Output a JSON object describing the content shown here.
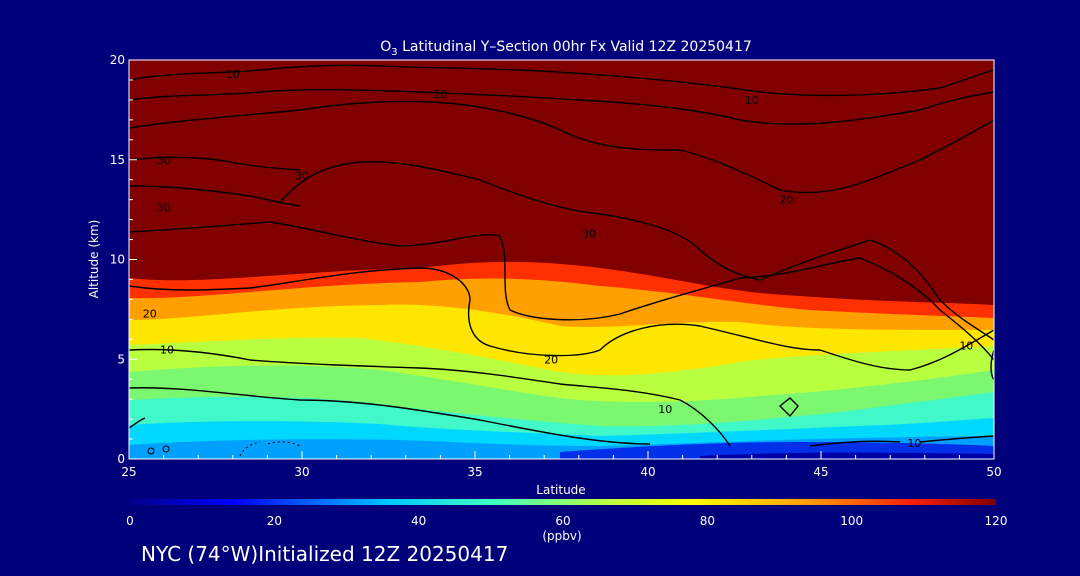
{
  "chart_data": {
    "type": "heatmap",
    "title_main": "O",
    "title_sub": "3",
    "title_rest": " Latitudinal Y–Section 00hr  Fx Valid 12Z 20250417",
    "xlabel": "Latitude",
    "ylabel": "Altitude (km)",
    "xlim": [
      25,
      50
    ],
    "ylim": [
      0,
      20
    ],
    "x_ticks": [
      "25",
      "30",
      "35",
      "40",
      "45",
      "50"
    ],
    "y_ticks": [
      "0",
      "5",
      "10",
      "15",
      "20"
    ],
    "colorbar": {
      "ticks": [
        "0",
        "20",
        "40",
        "60",
        "80",
        "100",
        "120"
      ],
      "range": [
        0,
        120
      ],
      "unit": "(ppbv)"
    },
    "contours": [
      {
        "label": "10",
        "lat": 28,
        "alt": 19.3
      },
      {
        "label": "20",
        "lat": 34,
        "alt": 18.3
      },
      {
        "label": "10",
        "lat": 43,
        "alt": 18.0
      },
      {
        "label": "30",
        "lat": 26,
        "alt": 15.0
      },
      {
        "label": "30",
        "lat": 26,
        "alt": 12.6
      },
      {
        "label": "30",
        "lat": 30,
        "alt": 14.2
      },
      {
        "label": "20",
        "lat": 44,
        "alt": 13.0
      },
      {
        "label": "30",
        "lat": 38.3,
        "alt": 11.3
      },
      {
        "label": "20",
        "lat": 25.6,
        "alt": 7.3
      },
      {
        "label": "10",
        "lat": 26.1,
        "alt": 5.5
      },
      {
        "label": "20",
        "lat": 37.2,
        "alt": 5.0
      },
      {
        "label": "10",
        "lat": 40.5,
        "alt": 2.5
      },
      {
        "label": "10",
        "lat": 49.2,
        "alt": 5.7
      },
      {
        "label": "10",
        "lat": 47.7,
        "alt": 0.8
      }
    ]
  },
  "colors": {
    "background": "#00007a",
    "ozone_max": "#800000"
  },
  "footer": "NYC (74°W)Initialized 12Z 20250417"
}
